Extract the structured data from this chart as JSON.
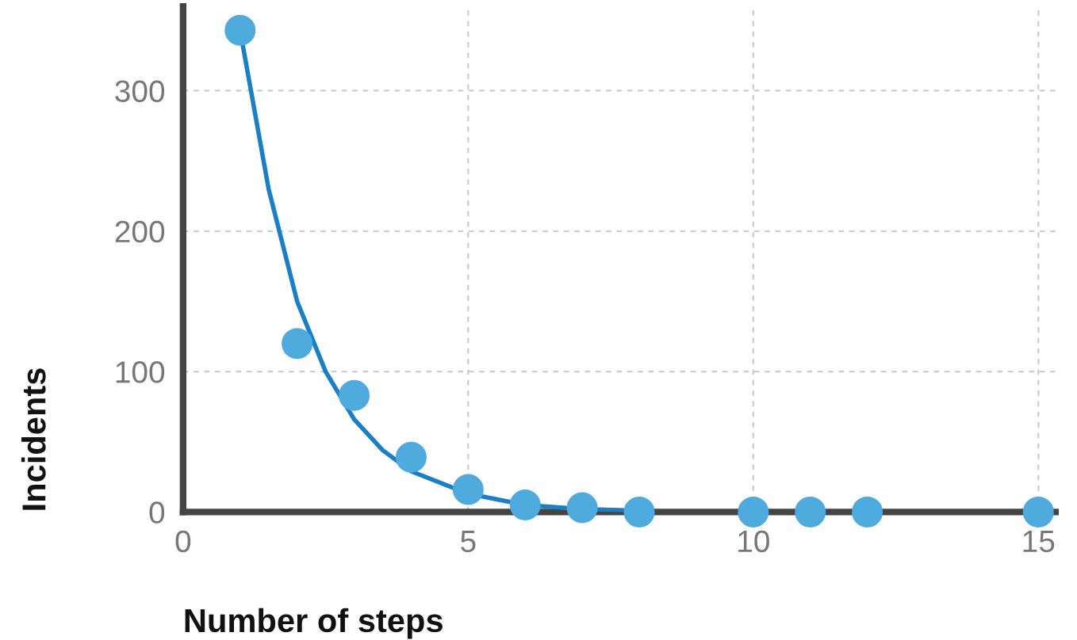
{
  "chart_data": {
    "type": "scatter",
    "xlabel": "Number of steps",
    "ylabel": "Incidents",
    "xlim": [
      0,
      15.3
    ],
    "ylim": [
      0,
      360
    ],
    "xticks": [
      0,
      5,
      10,
      15
    ],
    "yticks": [
      0,
      100,
      200,
      300
    ],
    "grid": true,
    "series": [
      {
        "marker": "circle",
        "color": "#4faadd",
        "x": [
          1,
          2,
          3,
          4,
          5,
          6,
          7,
          8,
          10,
          11,
          12,
          15
        ],
        "values": [
          343,
          120,
          83,
          39,
          16,
          5,
          3,
          0,
          0,
          0,
          0,
          0
        ]
      },
      {
        "type": "line",
        "color": "#1b7fc6",
        "line_style": "solid",
        "x": [
          1,
          1.5,
          2,
          2.5,
          3,
          3.5,
          4,
          5,
          6,
          7,
          8
        ],
        "values": [
          343,
          230,
          150,
          100,
          66,
          44,
          29,
          13,
          5,
          2,
          1
        ]
      }
    ]
  }
}
